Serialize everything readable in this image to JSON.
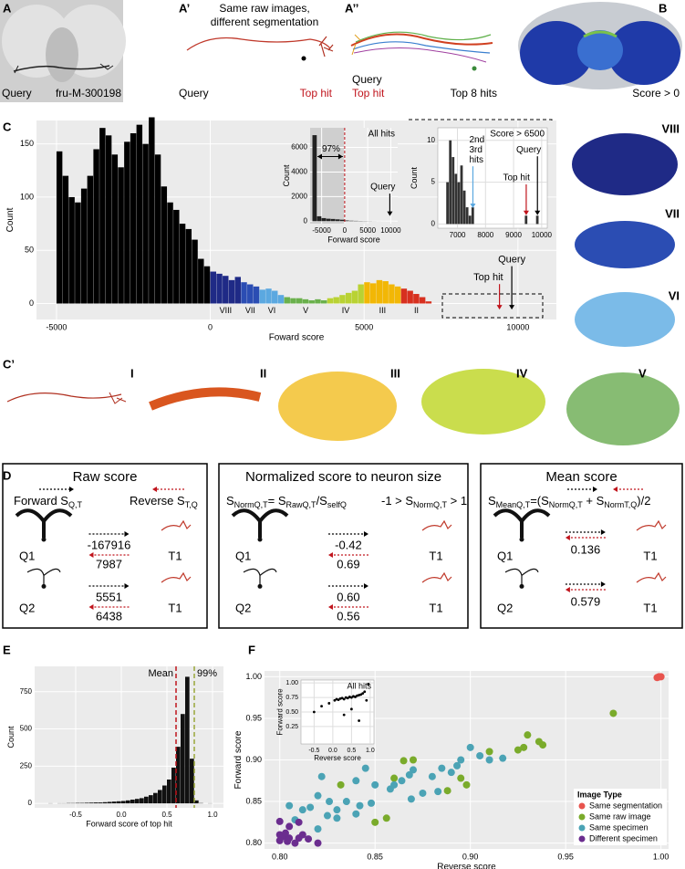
{
  "panels": {
    "A": "A",
    "A1": "A’",
    "A2": "A’’",
    "B": "B",
    "C": "C",
    "C1": "C’",
    "D": "D",
    "E": "E",
    "F": "F"
  },
  "panel_a": {
    "query": "Query",
    "id": "fru-M-300198"
  },
  "panel_a1": {
    "heading": [
      "Same raw images,",
      "different segmentation"
    ],
    "query": "Query",
    "top_hit": "Top hit"
  },
  "panel_a2": {
    "query": "Query",
    "top_hit": "Top hit",
    "top_hits": "Top 8 hits"
  },
  "panel_b": {
    "label": "Score > 0"
  },
  "panel_c_side": {
    "labels": [
      "VIII",
      "VII",
      "VI"
    ]
  },
  "panel_c1": {
    "labels": [
      "I",
      "II",
      "III",
      "IV",
      "V"
    ]
  },
  "panel_d": {
    "boxes": [
      {
        "title": "Raw score",
        "forward": [
          {
            "text": "Forward S",
            "sub": "Q,T"
          }
        ],
        "reverse": [
          {
            "text": "Reverse S",
            "sub": "T,Q"
          }
        ],
        "rows": [
          {
            "query": "Q1",
            "target": "T1",
            "forward": "-167916",
            "reverse": "7987"
          },
          {
            "query": "Q2",
            "target": "T1",
            "forward": "5551",
            "reverse": "6438"
          }
        ]
      },
      {
        "title": "Normalized score to neuron size",
        "formula": [
          {
            "text": "S",
            "sub": "NormQ,T"
          },
          {
            "text": "= S",
            "sub": "RawQ,T"
          },
          {
            "text": "/S",
            "sub": "selfQ"
          }
        ],
        "range": [
          {
            "text": "-1 > S",
            "sub": "NormQ,T"
          },
          {
            "text": " > 1"
          }
        ],
        "rows": [
          {
            "query": "Q1",
            "target": "T1",
            "forward": "-0.42",
            "reverse": "0.69"
          },
          {
            "query": "Q2",
            "target": "T1",
            "forward": "0.60",
            "reverse": "0.56"
          }
        ]
      },
      {
        "title": "Mean score",
        "formula": [
          {
            "text": "S",
            "sub": "MeanQ,T"
          },
          {
            "text": "=(S",
            "sub": "NormQ,T"
          },
          {
            "text": " + S",
            "sub": "NormT,Q"
          },
          {
            "text": ")/2"
          }
        ],
        "rows": [
          {
            "query": "Q1",
            "target": "T1",
            "value": "0.136"
          },
          {
            "query": "Q2",
            "target": "T1",
            "value": "0.579"
          }
        ]
      }
    ]
  },
  "chart_data": [
    {
      "type": "histogram",
      "x_label": "Foward score",
      "y_label": "Count",
      "panel_color": "#ebebeb",
      "grid": true,
      "bins": [
        -5000,
        -4800,
        -4600,
        -4400,
        -4200,
        -4000,
        -3800,
        -3600,
        -3400,
        -3200,
        -3000,
        -2800,
        -2600,
        -2400,
        -2200,
        -2000,
        -1800,
        -1600,
        -1400,
        -1200,
        -1000,
        -800,
        -600,
        -400,
        -200,
        0,
        200,
        400,
        600,
        800,
        1000,
        1200,
        1400,
        1600,
        1800,
        2000,
        2200,
        2400,
        2600,
        2800,
        3000,
        3200,
        3400,
        3600,
        3800,
        4000,
        4200,
        4400,
        4600,
        4800,
        5000,
        5200,
        5400,
        5600,
        5800,
        6000,
        6200,
        6400,
        6600,
        6800,
        7000,
        7200
      ],
      "values": [
        143,
        120,
        100,
        95,
        108,
        120,
        145,
        165,
        158,
        140,
        128,
        152,
        160,
        168,
        150,
        175,
        140,
        110,
        95,
        88,
        75,
        70,
        60,
        42,
        35,
        30,
        28,
        26,
        22,
        25,
        20,
        18,
        16,
        13,
        14,
        12,
        8,
        6,
        5,
        5,
        4,
        3,
        4,
        3,
        5,
        6,
        8,
        10,
        12,
        18,
        20,
        19,
        22,
        21,
        18,
        16,
        14,
        12,
        9,
        6,
        2
      ],
      "colors": [
        "#000000",
        "#000000",
        "#000000",
        "#000000",
        "#000000",
        "#000000",
        "#000000",
        "#000000",
        "#000000",
        "#000000",
        "#000000",
        "#000000",
        "#000000",
        "#000000",
        "#000000",
        "#000000",
        "#000000",
        "#000000",
        "#000000",
        "#000000",
        "#000000",
        "#000000",
        "#000000",
        "#000000",
        "#000000",
        "#1f2a86",
        "#1f2a86",
        "#1f2a86",
        "#1f2a86",
        "#1f2a86",
        "#2b4db3",
        "#2b4db3",
        "#2b4db3",
        "#5ba8e0",
        "#5ba8e0",
        "#5ba8e0",
        "#5ba8e0",
        "#6ab04c",
        "#6ab04c",
        "#6ab04c",
        "#6ab04c",
        "#6ab04c",
        "#6ab04c",
        "#6ab04c",
        "#b9d233",
        "#b9d233",
        "#b9d233",
        "#b9d233",
        "#b9d233",
        "#b9d233",
        "#f2b705",
        "#f2b705",
        "#f2b705",
        "#f2b705",
        "#f2b705",
        "#f2b705",
        "#d7301f",
        "#d7301f",
        "#d7301f",
        "#d7301f",
        "#d7301f"
      ],
      "class_labels": [
        "VIII",
        "VII",
        "VI",
        "V",
        "IV",
        "III",
        "II"
      ],
      "class_colors": [
        "#1f2a86",
        "#2b4db3",
        "#5ba8e0",
        "#6ab04c",
        "#b9d233",
        "#f2b705",
        "#d7301f"
      ],
      "markers": [
        {
          "label": "Query",
          "x": 9800,
          "color": "#000000"
        },
        {
          "label": "Top hit",
          "x": 9400,
          "color": "#c0141c"
        }
      ],
      "xlim": [
        -5650,
        11250
      ],
      "xticks": [
        -5000,
        0,
        5000,
        10000
      ],
      "ylim": [
        -15,
        172
      ],
      "yticks": [
        0,
        50,
        100,
        150
      ]
    },
    {
      "type": "histogram",
      "title": "All hits",
      "x_label": "Forward score",
      "y_label": "Count",
      "panel_color": "#ebebeb",
      "grid": true,
      "color": "#222222",
      "bins": [
        -7000,
        -6000,
        -5000,
        -4000,
        -3000,
        -2000,
        -1000,
        0,
        1000,
        2000,
        3000,
        4000,
        5000,
        6000,
        7000,
        8000,
        9000,
        10000,
        11000
      ],
      "values": [
        7000,
        400,
        250,
        200,
        180,
        150,
        120,
        60,
        40,
        30,
        20,
        15,
        10,
        5,
        3,
        2,
        1,
        1
      ],
      "threshold": 0,
      "threshold_label": "97%",
      "markers": [
        {
          "label": "Query",
          "x": 9800,
          "color": "#000000"
        }
      ],
      "xlim": [
        -7500,
        11500
      ],
      "xticks": [
        -5000,
        0,
        5000,
        10000
      ],
      "ylim": [
        -200,
        7600
      ],
      "yticks": [
        0,
        2000,
        4000,
        6000
      ]
    },
    {
      "type": "histogram",
      "title": "Score > 6500",
      "y_label": "Count",
      "panel_color": "#ffffff",
      "grid": true,
      "color": "#333333",
      "bins": [
        6500,
        6600,
        6700,
        6800,
        6900,
        7000,
        7100,
        7200,
        7300,
        7400,
        7500,
        7600,
        7700,
        7800,
        7900,
        8000,
        8100,
        8200,
        8300,
        8400,
        8500,
        8600,
        8700,
        8800,
        8900,
        9000,
        9100,
        9200,
        9300,
        9400,
        9500,
        9600,
        9700,
        9800,
        9900,
        10000
      ],
      "values": [
        0,
        5,
        10,
        8,
        6,
        5,
        7,
        4,
        2,
        1,
        2,
        0,
        0,
        0,
        0,
        0,
        0,
        0,
        0,
        0,
        0,
        0,
        0,
        0,
        0,
        0,
        0,
        0,
        0,
        1,
        0,
        0,
        0,
        1,
        0
      ],
      "markers": [
        {
          "label": [
            "2nd",
            "3rd",
            "hits"
          ],
          "x": 7550,
          "color": "#5ba8e0"
        },
        {
          "label": "Top hit",
          "x": 9450,
          "color": "#c0141c"
        },
        {
          "label": "Query",
          "x": 9850,
          "color": "#000000"
        }
      ],
      "xlim": [
        6300,
        10200
      ],
      "xticks": [
        7000,
        8000,
        9000,
        10000
      ],
      "ylim": [
        -0.5,
        11.5
      ],
      "yticks": [
        0,
        5,
        10
      ]
    },
    {
      "type": "histogram",
      "x_label": "Forward score of top hit",
      "y_label": "Count",
      "panel_color": "#ebebeb",
      "grid": true,
      "color": "#111111",
      "bins": [
        -0.8,
        -0.75,
        -0.7,
        -0.65,
        -0.6,
        -0.55,
        -0.5,
        -0.45,
        -0.4,
        -0.35,
        -0.3,
        -0.25,
        -0.2,
        -0.15,
        -0.1,
        -0.05,
        0,
        0.05,
        0.1,
        0.15,
        0.2,
        0.25,
        0.3,
        0.35,
        0.4,
        0.45,
        0.5,
        0.55,
        0.6,
        0.65,
        0.7,
        0.75,
        0.8,
        0.85,
        0.9,
        0.95,
        1.0
      ],
      "values": [
        1,
        0,
        1,
        1,
        2,
        2,
        3,
        3,
        4,
        5,
        6,
        6,
        8,
        10,
        12,
        14,
        16,
        20,
        25,
        30,
        35,
        45,
        55,
        70,
        90,
        120,
        160,
        240,
        380,
        600,
        850,
        300,
        20,
        2,
        0,
        1
      ],
      "vlines": [
        {
          "label": "Mean",
          "x": 0.6,
          "color": "#c0141c"
        },
        {
          "label": "99%",
          "x": 0.8,
          "color": "#9aa83a"
        }
      ],
      "xlim": [
        -0.95,
        1.12
      ],
      "xticks": [
        -0.5,
        {
          "value": 0,
          "label": "0.0"
        },
        0.5,
        {
          "value": 1,
          "label": "1.0"
        }
      ],
      "ylim": [
        -30,
        920
      ],
      "yticks": [
        0,
        250,
        500,
        750
      ]
    },
    {
      "type": "scatter",
      "x_label": "Reverse score",
      "y_label": "Forward score",
      "panel_color": "#ebebeb",
      "grid": true,
      "legend_title": "Image Type",
      "legend": "bottom-right",
      "series": [
        {
          "name": "Same segmentation",
          "color": "#e8544e",
          "x": [
            1.0,
            0.998,
            0.999
          ],
          "y": [
            1.0,
            0.999,
            1.0
          ]
        },
        {
          "name": "Same raw image",
          "color": "#7aab2b",
          "x": [
            0.975,
            0.93,
            0.936,
            0.938,
            0.925,
            0.928,
            0.91,
            0.87,
            0.865,
            0.898,
            0.895,
            0.888,
            0.86,
            0.832,
            0.856,
            0.85
          ],
          "y": [
            0.956,
            0.93,
            0.922,
            0.918,
            0.912,
            0.915,
            0.91,
            0.9,
            0.899,
            0.87,
            0.878,
            0.863,
            0.878,
            0.87,
            0.83,
            0.825
          ]
        },
        {
          "name": "Same specimen",
          "color": "#4ba3b5",
          "x": [
            0.905,
            0.91,
            0.917,
            0.9,
            0.895,
            0.893,
            0.89,
            0.885,
            0.88,
            0.87,
            0.868,
            0.864,
            0.86,
            0.858,
            0.85,
            0.845,
            0.84,
            0.835,
            0.83,
            0.826,
            0.822,
            0.82,
            0.816,
            0.812,
            0.808,
            0.805,
            0.842,
            0.848,
            0.875,
            0.883,
            0.869,
            0.84,
            0.83,
            0.82,
            0.825
          ],
          "y": [
            0.905,
            0.9,
            0.902,
            0.915,
            0.9,
            0.893,
            0.885,
            0.89,
            0.88,
            0.888,
            0.882,
            0.875,
            0.87,
            0.865,
            0.87,
            0.89,
            0.875,
            0.85,
            0.84,
            0.85,
            0.88,
            0.857,
            0.843,
            0.84,
            0.828,
            0.845,
            0.845,
            0.848,
            0.86,
            0.862,
            0.853,
            0.835,
            0.83,
            0.817,
            0.833
          ]
        },
        {
          "name": "Different specimen",
          "color": "#6b2d8f",
          "x": [
            0.8,
            0.805,
            0.81,
            0.8,
            0.802,
            0.805,
            0.81,
            0.812,
            0.804,
            0.8,
            0.808,
            0.815,
            0.82,
            0.803
          ],
          "y": [
            0.826,
            0.82,
            0.825,
            0.81,
            0.808,
            0.806,
            0.806,
            0.81,
            0.802,
            0.803,
            0.8,
            0.805,
            0.8,
            0.812
          ]
        }
      ],
      "xlim": [
        0.792,
        1.004
      ],
      "xticks": [
        {
          "value": 0.8,
          "label": "0.80"
        },
        {
          "value": 0.85,
          "label": "0.85"
        },
        {
          "value": 0.9,
          "label": "0.90"
        },
        {
          "value": 0.95,
          "label": "0.95"
        },
        {
          "value": 1,
          "label": "1.00"
        }
      ],
      "ylim": [
        0.793,
        1.007
      ],
      "yticks": [
        {
          "value": 0.8,
          "label": "0.80"
        },
        {
          "value": 0.85,
          "label": "0.85"
        },
        {
          "value": 0.9,
          "label": "0.90"
        },
        {
          "value": 0.95,
          "label": "0.95"
        },
        {
          "value": 1,
          "label": "1.00"
        }
      ]
    },
    {
      "type": "scatter",
      "title": "All hits",
      "x_label": "Reverse score",
      "y_label": "Forward score",
      "panel_color": "#ffffff",
      "grid": true,
      "series": [
        {
          "color": "#000000",
          "x": [
            0.05,
            0.1,
            0.15,
            0.2,
            0.25,
            0.3,
            0.35,
            0.4,
            0.45,
            0.5,
            0.55,
            0.6,
            0.65,
            0.7,
            0.75,
            0.8,
            0.85,
            -0.5,
            -0.3,
            -0.1,
            0.3,
            0.5,
            0.7,
            0.9,
            0.95
          ],
          "y": [
            0.7,
            0.72,
            0.71,
            0.73,
            0.74,
            0.72,
            0.75,
            0.74,
            0.76,
            0.75,
            0.77,
            0.76,
            0.78,
            0.79,
            0.8,
            0.82,
            0.85,
            0.5,
            0.6,
            0.65,
            0.45,
            0.55,
            0.35,
            0.7,
            0.98
          ]
        }
      ],
      "xlim": [
        -0.85,
        1.1
      ],
      "xticks": [
        -0.5,
        {
          "value": 0,
          "label": "0.0"
        },
        0.5,
        {
          "value": 1,
          "label": "1.0"
        }
      ],
      "ylim": [
        -0.05,
        1.05
      ],
      "yticks": [
        0.25,
        {
          "value": 0.5,
          "label": "0.50"
        },
        0.75,
        {
          "value": 1,
          "label": "1.00"
        }
      ]
    }
  ]
}
